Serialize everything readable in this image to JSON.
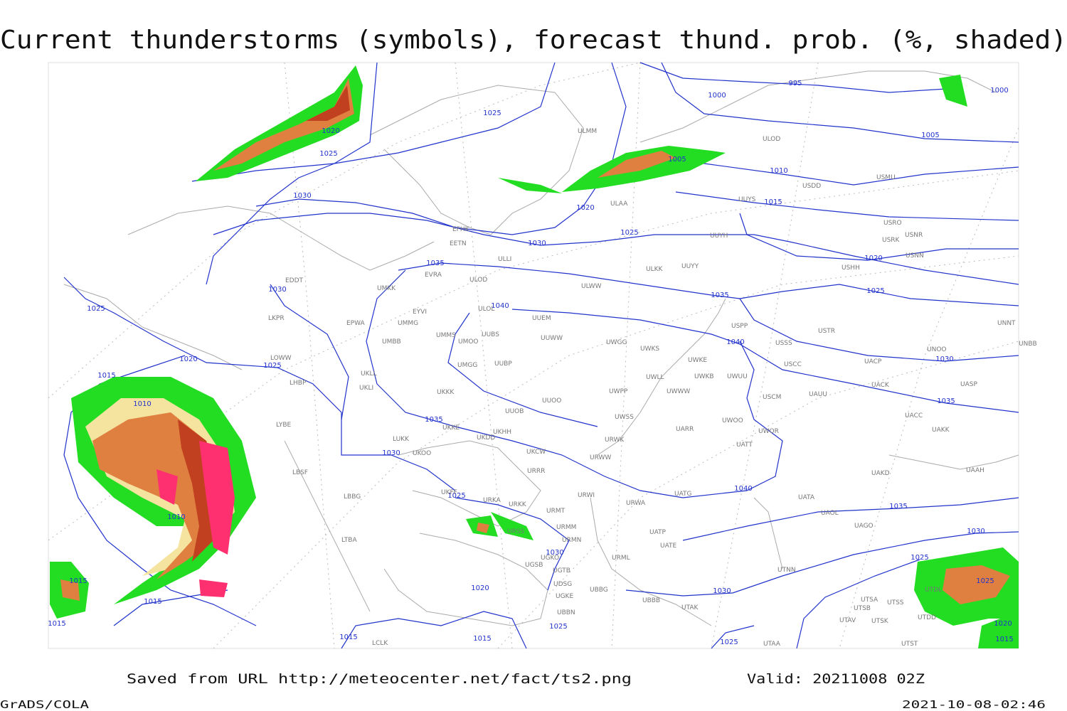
{
  "header": {
    "title": "Current thunderstorms (symbols), forecast thund. prob. (%, shaded)"
  },
  "footer": {
    "source": "Saved from URL http://meteocenter.net/fact/ts2.png",
    "valid": "Valid: 20211008 02Z",
    "software": "GrADS/COLA",
    "timestamp": "2021-10-08-02:46"
  },
  "map": {
    "isobar_labels": [
      1025,
      995,
      1000,
      1000,
      1005,
      1020,
      1025,
      1030,
      1010,
      1015,
      1005,
      1020,
      1025,
      1030,
      1035,
      1030,
      1025,
      1020,
      1025,
      1040,
      1035,
      1040,
      1020,
      1025,
      1030,
      1035,
      1015,
      1010,
      1035,
      1030,
      1025,
      1010,
      1040,
      1035,
      1030,
      1030,
      1025,
      1015,
      1025,
      1020,
      1015,
      1030,
      1015,
      1020,
      1025,
      1015,
      1015,
      1015,
      1025
    ],
    "stations": [
      "ULMM",
      "ULOD",
      "USMU",
      "USDD",
      "ULAA",
      "UUYS",
      "EFHK",
      "EETN",
      "USRK",
      "USNR",
      "USRO",
      "UUYH",
      "USNN",
      "USHH",
      "ULLI",
      "ULKK",
      "UUYY",
      "EVRA",
      "ULOD",
      "EDDT",
      "UMKK",
      "ULWW",
      "UUEM",
      "ULOL",
      "EYVI",
      "USPP",
      "USTR",
      "UNNT",
      "UNBB",
      "LKPR",
      "EPWA",
      "UMMG",
      "UMMS",
      "UUBS",
      "UMOO",
      "UUWW",
      "UWGG",
      "UWKS",
      "USSS",
      "UMBB",
      "USCC",
      "UACP",
      "UNOO",
      "LOWW",
      "UWKE",
      "UUBP",
      "UMGG",
      "UWKB",
      "UWUU",
      "UWLL",
      "UKLL",
      "LHBP",
      "UKLI",
      "UACK",
      "UASP",
      "UWPP",
      "UWWW",
      "UKKK",
      "UAUU",
      "USCM",
      "UUOO",
      "UUOB",
      "UWSS",
      "LYBE",
      "UKKE",
      "UKHH",
      "UACC",
      "UAKK",
      "UARR",
      "UWOO",
      "UWOR",
      "UKDD",
      "LUKK",
      "URWK",
      "UATT",
      "UKOO",
      "UKCW",
      "URWW",
      "UAKD",
      "UAAH",
      "LBSF",
      "URRR",
      "URWI",
      "UATG",
      "LBBG",
      "UKFF",
      "URKA",
      "URKK",
      "UATA",
      "URWA",
      "URMT",
      "UAOL",
      "UAGO",
      "URMM",
      "URSS",
      "UATP",
      "URMN",
      "UATE",
      "UGKO",
      "UGSB",
      "UGTB",
      "URML",
      "UTNN",
      "UDSG",
      "UBBG",
      "UGKE",
      "UBBN",
      "UBBB",
      "UTAK",
      "UTDL",
      "UTSA",
      "UTSB",
      "UTSS",
      "UTAV",
      "UTSK",
      "UTDD",
      "UTST",
      "LCLK",
      "UTAA",
      "LTBA"
    ]
  }
}
